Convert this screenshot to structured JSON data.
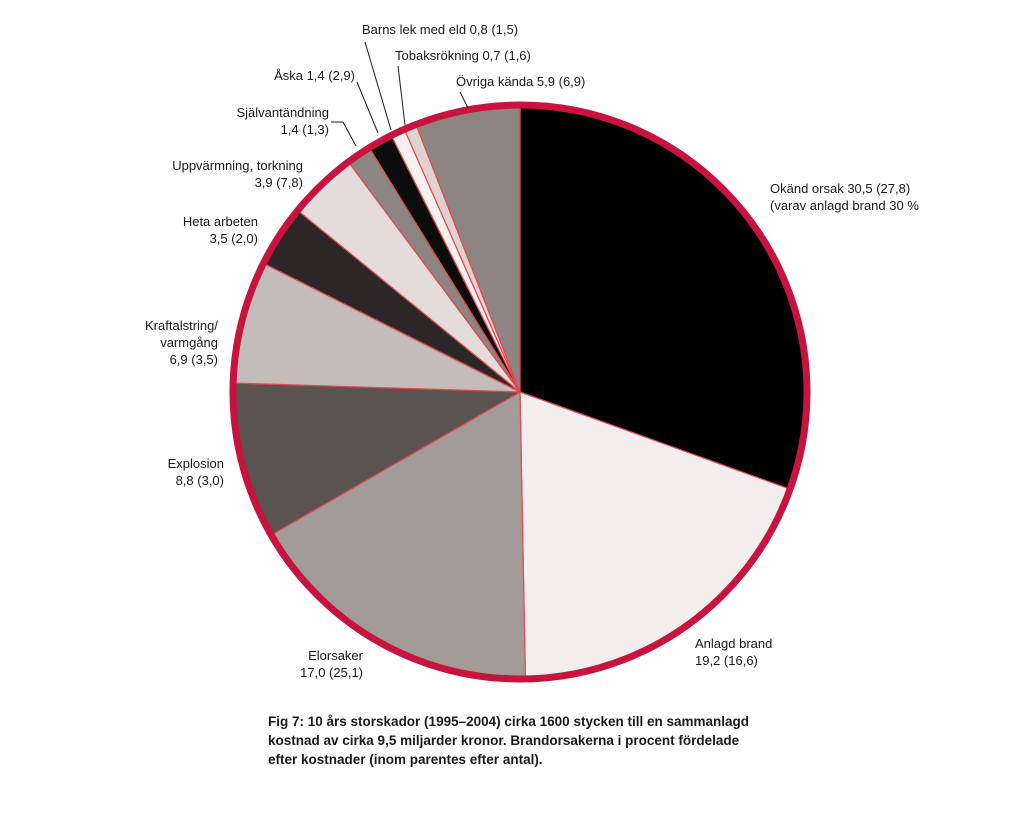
{
  "chart_data": {
    "type": "pie",
    "start": "12 o'clock",
    "direction": "clockwise",
    "slices": [
      {
        "name": "Okänd orsak",
        "value": 30.5,
        "count_pct": 27.8,
        "color": "#000000",
        "label": [
          "Okänd orsak 30,5 (27,8)",
          "(varav anlagd brand 30 %"
        ]
      },
      {
        "name": "Anlagd brand",
        "value": 19.2,
        "count_pct": 16.6,
        "color": "#f3eeee",
        "label": [
          "Anlagd brand",
          "19,2 (16,6)"
        ]
      },
      {
        "name": "Elorsaker",
        "value": 17.0,
        "count_pct": 25.1,
        "color": "#a39b97",
        "label": [
          "Elorsaker",
          "17,0 (25,1)"
        ]
      },
      {
        "name": "Explosion",
        "value": 8.8,
        "count_pct": 3.0,
        "color": "#5b534f",
        "label": [
          "Explosion",
          "8,8 (3,0)"
        ]
      },
      {
        "name": "Kraftalstring/varmgång",
        "value": 6.9,
        "count_pct": 3.5,
        "color": "#c4bcb8",
        "label": [
          "Kraftalstring/",
          "varmgång",
          "6,9 (3,5)"
        ]
      },
      {
        "name": "Heta arbeten",
        "value": 3.5,
        "count_pct": 2.0,
        "color": "#2c2727",
        "label": [
          "Heta arbeten",
          "3,5 (2,0)"
        ]
      },
      {
        "name": "Uppvärmning, torkning",
        "value": 3.9,
        "count_pct": 7.8,
        "color": "#e4dcda",
        "label": [
          "Uppvärmning, torkning",
          "3,9 (7,8)"
        ]
      },
      {
        "name": "Självantändning",
        "value": 1.4,
        "count_pct": 1.3,
        "color": "#8c8582",
        "label": [
          "Självantändning",
          "1,4 (1,3)"
        ]
      },
      {
        "name": "Åska",
        "value": 1.4,
        "count_pct": 2.9,
        "color": "#0c0c0c",
        "label": [
          "Åska 1,4 (2,9)"
        ]
      },
      {
        "name": "Barns lek med eld",
        "value": 0.8,
        "count_pct": 1.5,
        "color": "#f6f1f1",
        "label": [
          "Barns lek med eld 0,8 (1,5)"
        ]
      },
      {
        "name": "Tobaksrökning",
        "value": 0.7,
        "count_pct": 1.6,
        "color": "#ddd4d2",
        "label": [
          "Tobaksrökning 0,7 (1,6)"
        ]
      },
      {
        "name": "Övriga kända",
        "value": 5.9,
        "count_pct": 6.9,
        "color": "#8e8582",
        "label": [
          "Övriga kända 5,9 (6,9)"
        ]
      }
    ],
    "colors": {
      "rim": "#c8133f",
      "slice_edge": "#e2484f"
    }
  },
  "caption": "Fig 7:  10 års storskador (1995–2004) cirka 1600 stycken till en sammanlagd kostnad av cirka 9,5 miljarder kronor. Brandorsakerna i procent fördelade efter kostnader (inom parentes efter antal)."
}
